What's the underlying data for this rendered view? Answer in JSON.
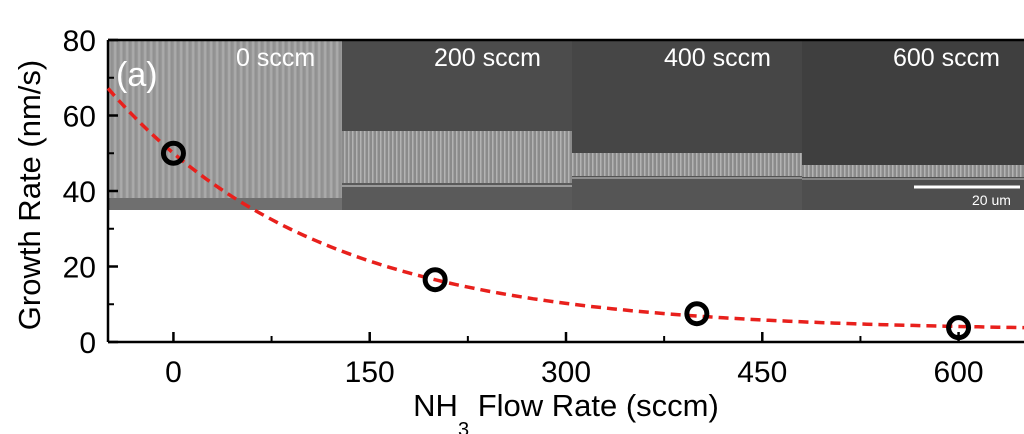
{
  "chart_data": {
    "type": "scatter",
    "xlabel_main": "NH",
    "xlabel_sub": "3",
    "xlabel_rest": " Flow Rate (sccm)",
    "ylabel": "Growth Rate (nm/s)",
    "xlim": [
      -50,
      650
    ],
    "ylim": [
      0,
      80
    ],
    "xticks": [
      0,
      150,
      300,
      450,
      600
    ],
    "yticks": [
      0,
      20,
      40,
      60,
      80
    ],
    "points": [
      {
        "x": 0,
        "y": 50
      },
      {
        "x": 200,
        "y": 16.5
      },
      {
        "x": 400,
        "y": 7.5
      },
      {
        "x": 600,
        "y": 3.8
      }
    ],
    "fit": {
      "style": "dashed",
      "color": "#e8201c",
      "model": "exponential decay"
    },
    "panel_label": "(a)",
    "inset_labels": [
      "0 sccm",
      "200 sccm",
      "400 sccm",
      "600 sccm"
    ],
    "scale_bar_label": "20 um",
    "marker_color": "#000000",
    "grid": false
  }
}
